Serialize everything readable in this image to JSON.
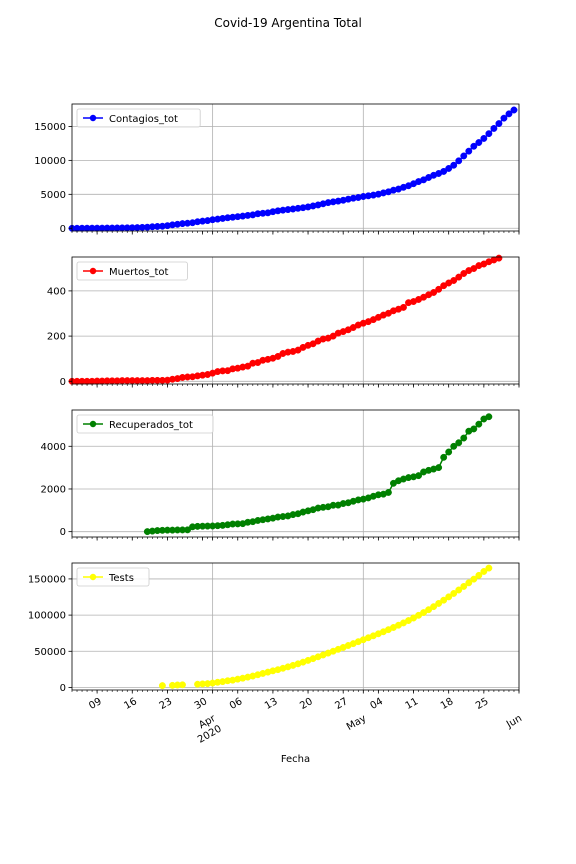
{
  "figure": {
    "title": "Covid-19 Argentina Total",
    "xlabel": "Fecha"
  },
  "x_axis": {
    "range": [
      "2020-03-04",
      "2020-06-01"
    ],
    "major_ticks": [
      {
        "date": "2020-04-01",
        "label": "Apr\n2020"
      },
      {
        "date": "2020-05-01",
        "label": "May"
      },
      {
        "date": "2020-06-01",
        "label": "Jun"
      }
    ],
    "minor_ticks": [
      {
        "date": "2020-03-09",
        "label": "09"
      },
      {
        "date": "2020-03-16",
        "label": "16"
      },
      {
        "date": "2020-03-23",
        "label": "23"
      },
      {
        "date": "2020-03-30",
        "label": "30"
      },
      {
        "date": "2020-04-06",
        "label": "06"
      },
      {
        "date": "2020-04-13",
        "label": "13"
      },
      {
        "date": "2020-04-20",
        "label": "20"
      },
      {
        "date": "2020-04-27",
        "label": "27"
      },
      {
        "date": "2020-05-04",
        "label": "04"
      },
      {
        "date": "2020-05-11",
        "label": "11"
      },
      {
        "date": "2020-05-18",
        "label": "18"
      },
      {
        "date": "2020-05-25",
        "label": "25"
      }
    ]
  },
  "chart_data": [
    {
      "type": "line",
      "marker": "circle",
      "color": "#0000ff",
      "legend": "Contagios_tot",
      "legend_position": "top-left",
      "grid": true,
      "ylim": [
        -400,
        18300
      ],
      "yticks": [
        0,
        5000,
        10000,
        15000
      ],
      "x_start": "2020-03-04",
      "values": [
        1,
        2,
        8,
        12,
        17,
        19,
        21,
        31,
        34,
        45,
        56,
        65,
        79,
        97,
        128,
        158,
        225,
        266,
        301,
        387,
        502,
        589,
        690,
        745,
        820,
        966,
        1054,
        1133,
        1265,
        1353,
        1451,
        1554,
        1628,
        1715,
        1795,
        1894,
        1975,
        2142,
        2208,
        2277,
        2443,
        2571,
        2669,
        2758,
        2839,
        2941,
        3031,
        3144,
        3288,
        3435,
        3607,
        3780,
        3892,
        4003,
        4127,
        4285,
        4428,
        4532,
        4681,
        4783,
        4887,
        5020,
        5208,
        5371,
        5611,
        5776,
        6034,
        6265,
        6563,
        6879,
        7134,
        7479,
        7805,
        8068,
        8371,
        8809,
        9283,
        9931,
        10649,
        11353,
        12076,
        12628,
        13228,
        13933,
        14702,
        15419,
        16214,
        16851,
        17415
      ]
    },
    {
      "type": "line",
      "marker": "circle",
      "color": "#ff0000",
      "legend": "Muertos_tot",
      "legend_position": "top-left",
      "grid": true,
      "ylim": [
        -12,
        550
      ],
      "yticks": [
        0,
        200,
        400
      ],
      "x_start": "2020-03-04",
      "values": [
        0,
        0,
        0,
        0,
        0,
        1,
        1,
        2,
        2,
        2,
        3,
        3,
        3,
        3,
        3,
        3,
        4,
        4,
        4,
        5,
        9,
        12,
        17,
        19,
        20,
        24,
        27,
        30,
        36,
        43,
        46,
        47,
        55,
        58,
        63,
        67,
        80,
        83,
        93,
        97,
        102,
        110,
        123,
        129,
        132,
        138,
        150,
        159,
        166,
        178,
        187,
        191,
        200,
        213,
        220,
        228,
        238,
        249,
        257,
        264,
        273,
        283,
        293,
        301,
        312,
        319,
        327,
        348,
        353,
        362,
        372,
        383,
        393,
        407,
        423,
        435,
        446,
        461,
        477,
        490,
        499,
        512,
        519,
        529,
        537,
        545
      ]
    },
    {
      "type": "line",
      "marker": "circle",
      "color": "#008000",
      "legend": "Recuperados_tot",
      "legend_position": "top-left",
      "grid": true,
      "ylim": [
        -250,
        5700
      ],
      "yticks": [
        0,
        2000,
        4000
      ],
      "x_start": "2020-03-19",
      "values": [
        3,
        27,
        52,
        63,
        72,
        72,
        80,
        82,
        85,
        228,
        248,
        256,
        262,
        266,
        280,
        295,
        325,
        358,
        365,
        375,
        440,
        468,
        525,
        559,
        596,
        632,
        685,
        709,
        737,
        800,
        840,
        919,
        976,
        1030,
        1107,
        1140,
        1167,
        1237,
        1245,
        1318,
        1354,
        1425,
        1488,
        1524,
        1581,
        1659,
        1728,
        1757,
        1837,
        2266,
        2385,
        2466,
        2534,
        2569,
        2625,
        2797,
        2872,
        2933,
        3002,
        3482,
        3732,
        3999,
        4167,
        4386,
        4707,
        4813,
        5036,
        5278,
        5385
      ]
    },
    {
      "type": "line",
      "marker": "circle",
      "color": "#ffff00",
      "legend": "Tests",
      "legend_position": "top-left",
      "grid": true,
      "ylim": [
        -3500,
        172000
      ],
      "yticks": [
        0,
        50000,
        100000,
        150000
      ],
      "x_start": "2020-03-04",
      "values": [
        null,
        null,
        null,
        null,
        null,
        null,
        null,
        null,
        null,
        null,
        null,
        null,
        null,
        null,
        null,
        null,
        null,
        null,
        2600,
        null,
        2900,
        3400,
        3700,
        null,
        null,
        4500,
        4900,
        5300,
        6100,
        7200,
        8100,
        9300,
        10100,
        11500,
        12800,
        14300,
        15800,
        17600,
        19400,
        21200,
        23000,
        24600,
        26500,
        28500,
        30500,
        32700,
        35000,
        37400,
        39900,
        42400,
        44900,
        47500,
        50100,
        52700,
        55300,
        58000,
        60600,
        63300,
        66000,
        68700,
        71400,
        74200,
        77000,
        79900,
        82900,
        86000,
        89200,
        92500,
        96000,
        99700,
        103500,
        107500,
        111700,
        116100,
        120600,
        125200,
        129900,
        134700,
        139600,
        144600,
        149700,
        154900,
        160300,
        165000
      ]
    }
  ]
}
